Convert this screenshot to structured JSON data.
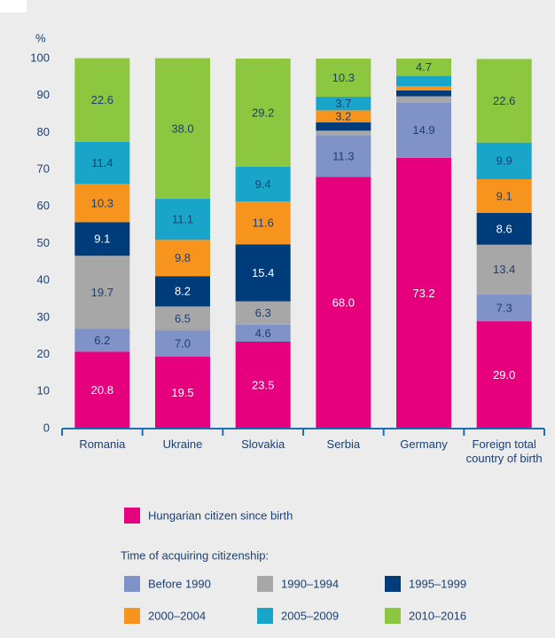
{
  "chart_data": {
    "type": "stacked_bar",
    "y_axis_label": "%",
    "categories": [
      "Romania",
      "Ukraine",
      "Slovakia",
      "Serbia",
      "Germany",
      "Foreign total country of birth"
    ],
    "series": [
      {
        "name": "Hungarian citizen since birth",
        "color": "#e6007e",
        "values": [
          20.8,
          19.5,
          23.5,
          68.0,
          73.2,
          29.0
        ],
        "value_labels": [
          "20.8",
          "19.5",
          "23.5",
          "68.0",
          "73.2",
          "29.0"
        ]
      },
      {
        "name": "Before 1990",
        "color": "#7f93c9",
        "values": [
          6.2,
          7.0,
          4.6,
          11.3,
          14.9,
          7.3
        ],
        "value_labels": [
          "6.2",
          "7.0",
          "4.6",
          "11.3",
          "14.9",
          "7.3"
        ]
      },
      {
        "name": "1990–1994",
        "color": "#a7a7a7",
        "values": [
          19.7,
          6.5,
          6.3,
          1.2,
          1.7,
          13.4
        ],
        "value_labels": [
          "19.7",
          "6.5",
          "6.3",
          null,
          null,
          "13.4"
        ]
      },
      {
        "name": "1995–1999",
        "color": "#003b7a",
        "values": [
          9.1,
          8.2,
          15.4,
          2.3,
          1.6,
          8.6
        ],
        "value_labels": [
          "9.1",
          "8.2",
          "15.4",
          null,
          null,
          "8.6"
        ]
      },
      {
        "name": "2000–2004",
        "color": "#f7941d",
        "values": [
          10.3,
          9.8,
          11.6,
          3.2,
          1.1,
          9.1
        ],
        "value_labels": [
          "10.3",
          "9.8",
          "11.6",
          "3.2",
          null,
          "9.1"
        ]
      },
      {
        "name": "2005–2009",
        "color": "#19a4c9",
        "values": [
          11.4,
          11.1,
          9.4,
          3.7,
          2.8,
          9.9
        ],
        "value_labels": [
          "11.4",
          "11.1",
          "9.4",
          "3.7",
          null,
          "9.9"
        ]
      },
      {
        "name": "2010–2016",
        "color": "#8dc63f",
        "values": [
          22.6,
          38.0,
          29.2,
          10.3,
          4.7,
          22.6
        ],
        "value_labels": [
          "22.6",
          "38.0",
          "29.2",
          "10.3",
          "4.7",
          "22.6"
        ]
      }
    ],
    "legend_title": "Time of acquiring citizenship:",
    "ylim": [
      0,
      100
    ],
    "yticks": [
      0,
      10,
      20,
      30,
      40,
      50,
      60,
      70,
      80,
      90,
      100
    ]
  }
}
